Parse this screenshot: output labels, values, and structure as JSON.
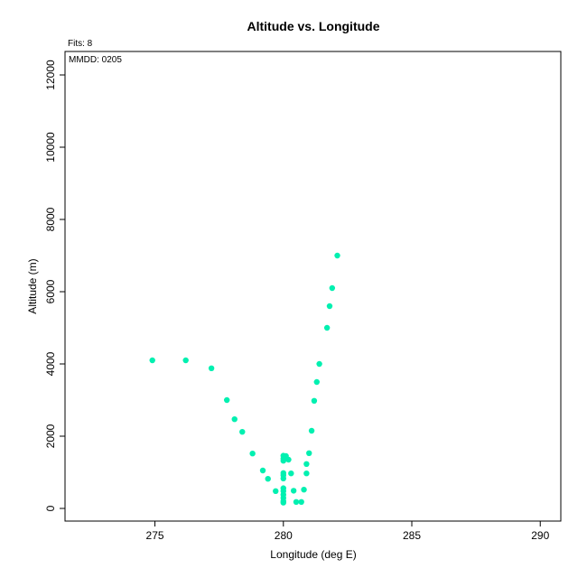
{
  "chart_data": {
    "type": "scatter",
    "title": "Altitude vs. Longitude",
    "xlabel": "Longitude (deg E)",
    "ylabel": "Altitude (m)",
    "xlim": [
      271.5,
      290.8
    ],
    "ylim": [
      -350,
      12650
    ],
    "xticks": [
      275,
      280,
      285,
      290
    ],
    "yticks": [
      0,
      2000,
      4000,
      6000,
      8000,
      10000,
      12000
    ],
    "grid": false,
    "annotations": {
      "fits": "Fits: 8",
      "mmdd": "MMDD: 0205"
    },
    "colors": {
      "points": "#00f0b0",
      "axis": "#000000"
    },
    "points": [
      {
        "x": 274.9,
        "y": 4100
      },
      {
        "x": 276.2,
        "y": 4100
      },
      {
        "x": 277.2,
        "y": 3880
      },
      {
        "x": 277.8,
        "y": 3000
      },
      {
        "x": 278.1,
        "y": 2470
      },
      {
        "x": 278.4,
        "y": 2120
      },
      {
        "x": 278.8,
        "y": 1520
      },
      {
        "x": 279.2,
        "y": 1050
      },
      {
        "x": 279.4,
        "y": 820
      },
      {
        "x": 279.7,
        "y": 480
      },
      {
        "x": 280.0,
        "y": 1460
      },
      {
        "x": 280.0,
        "y": 1380
      },
      {
        "x": 280.0,
        "y": 1320
      },
      {
        "x": 280.0,
        "y": 980
      },
      {
        "x": 280.0,
        "y": 920
      },
      {
        "x": 280.0,
        "y": 830
      },
      {
        "x": 280.0,
        "y": 560
      },
      {
        "x": 280.0,
        "y": 480
      },
      {
        "x": 280.0,
        "y": 380
      },
      {
        "x": 280.0,
        "y": 290
      },
      {
        "x": 280.0,
        "y": 200
      },
      {
        "x": 280.0,
        "y": 160
      },
      {
        "x": 280.1,
        "y": 1450
      },
      {
        "x": 280.2,
        "y": 1350
      },
      {
        "x": 280.3,
        "y": 970
      },
      {
        "x": 280.4,
        "y": 490
      },
      {
        "x": 280.5,
        "y": 180
      },
      {
        "x": 280.7,
        "y": 180
      },
      {
        "x": 280.8,
        "y": 520
      },
      {
        "x": 280.9,
        "y": 970
      },
      {
        "x": 280.9,
        "y": 1230
      },
      {
        "x": 281.0,
        "y": 1530
      },
      {
        "x": 281.1,
        "y": 2150
      },
      {
        "x": 281.2,
        "y": 2980
      },
      {
        "x": 281.3,
        "y": 3500
      },
      {
        "x": 281.4,
        "y": 4000
      },
      {
        "x": 281.7,
        "y": 5000
      },
      {
        "x": 281.8,
        "y": 5600
      },
      {
        "x": 281.9,
        "y": 6100
      },
      {
        "x": 282.1,
        "y": 7000
      }
    ]
  }
}
